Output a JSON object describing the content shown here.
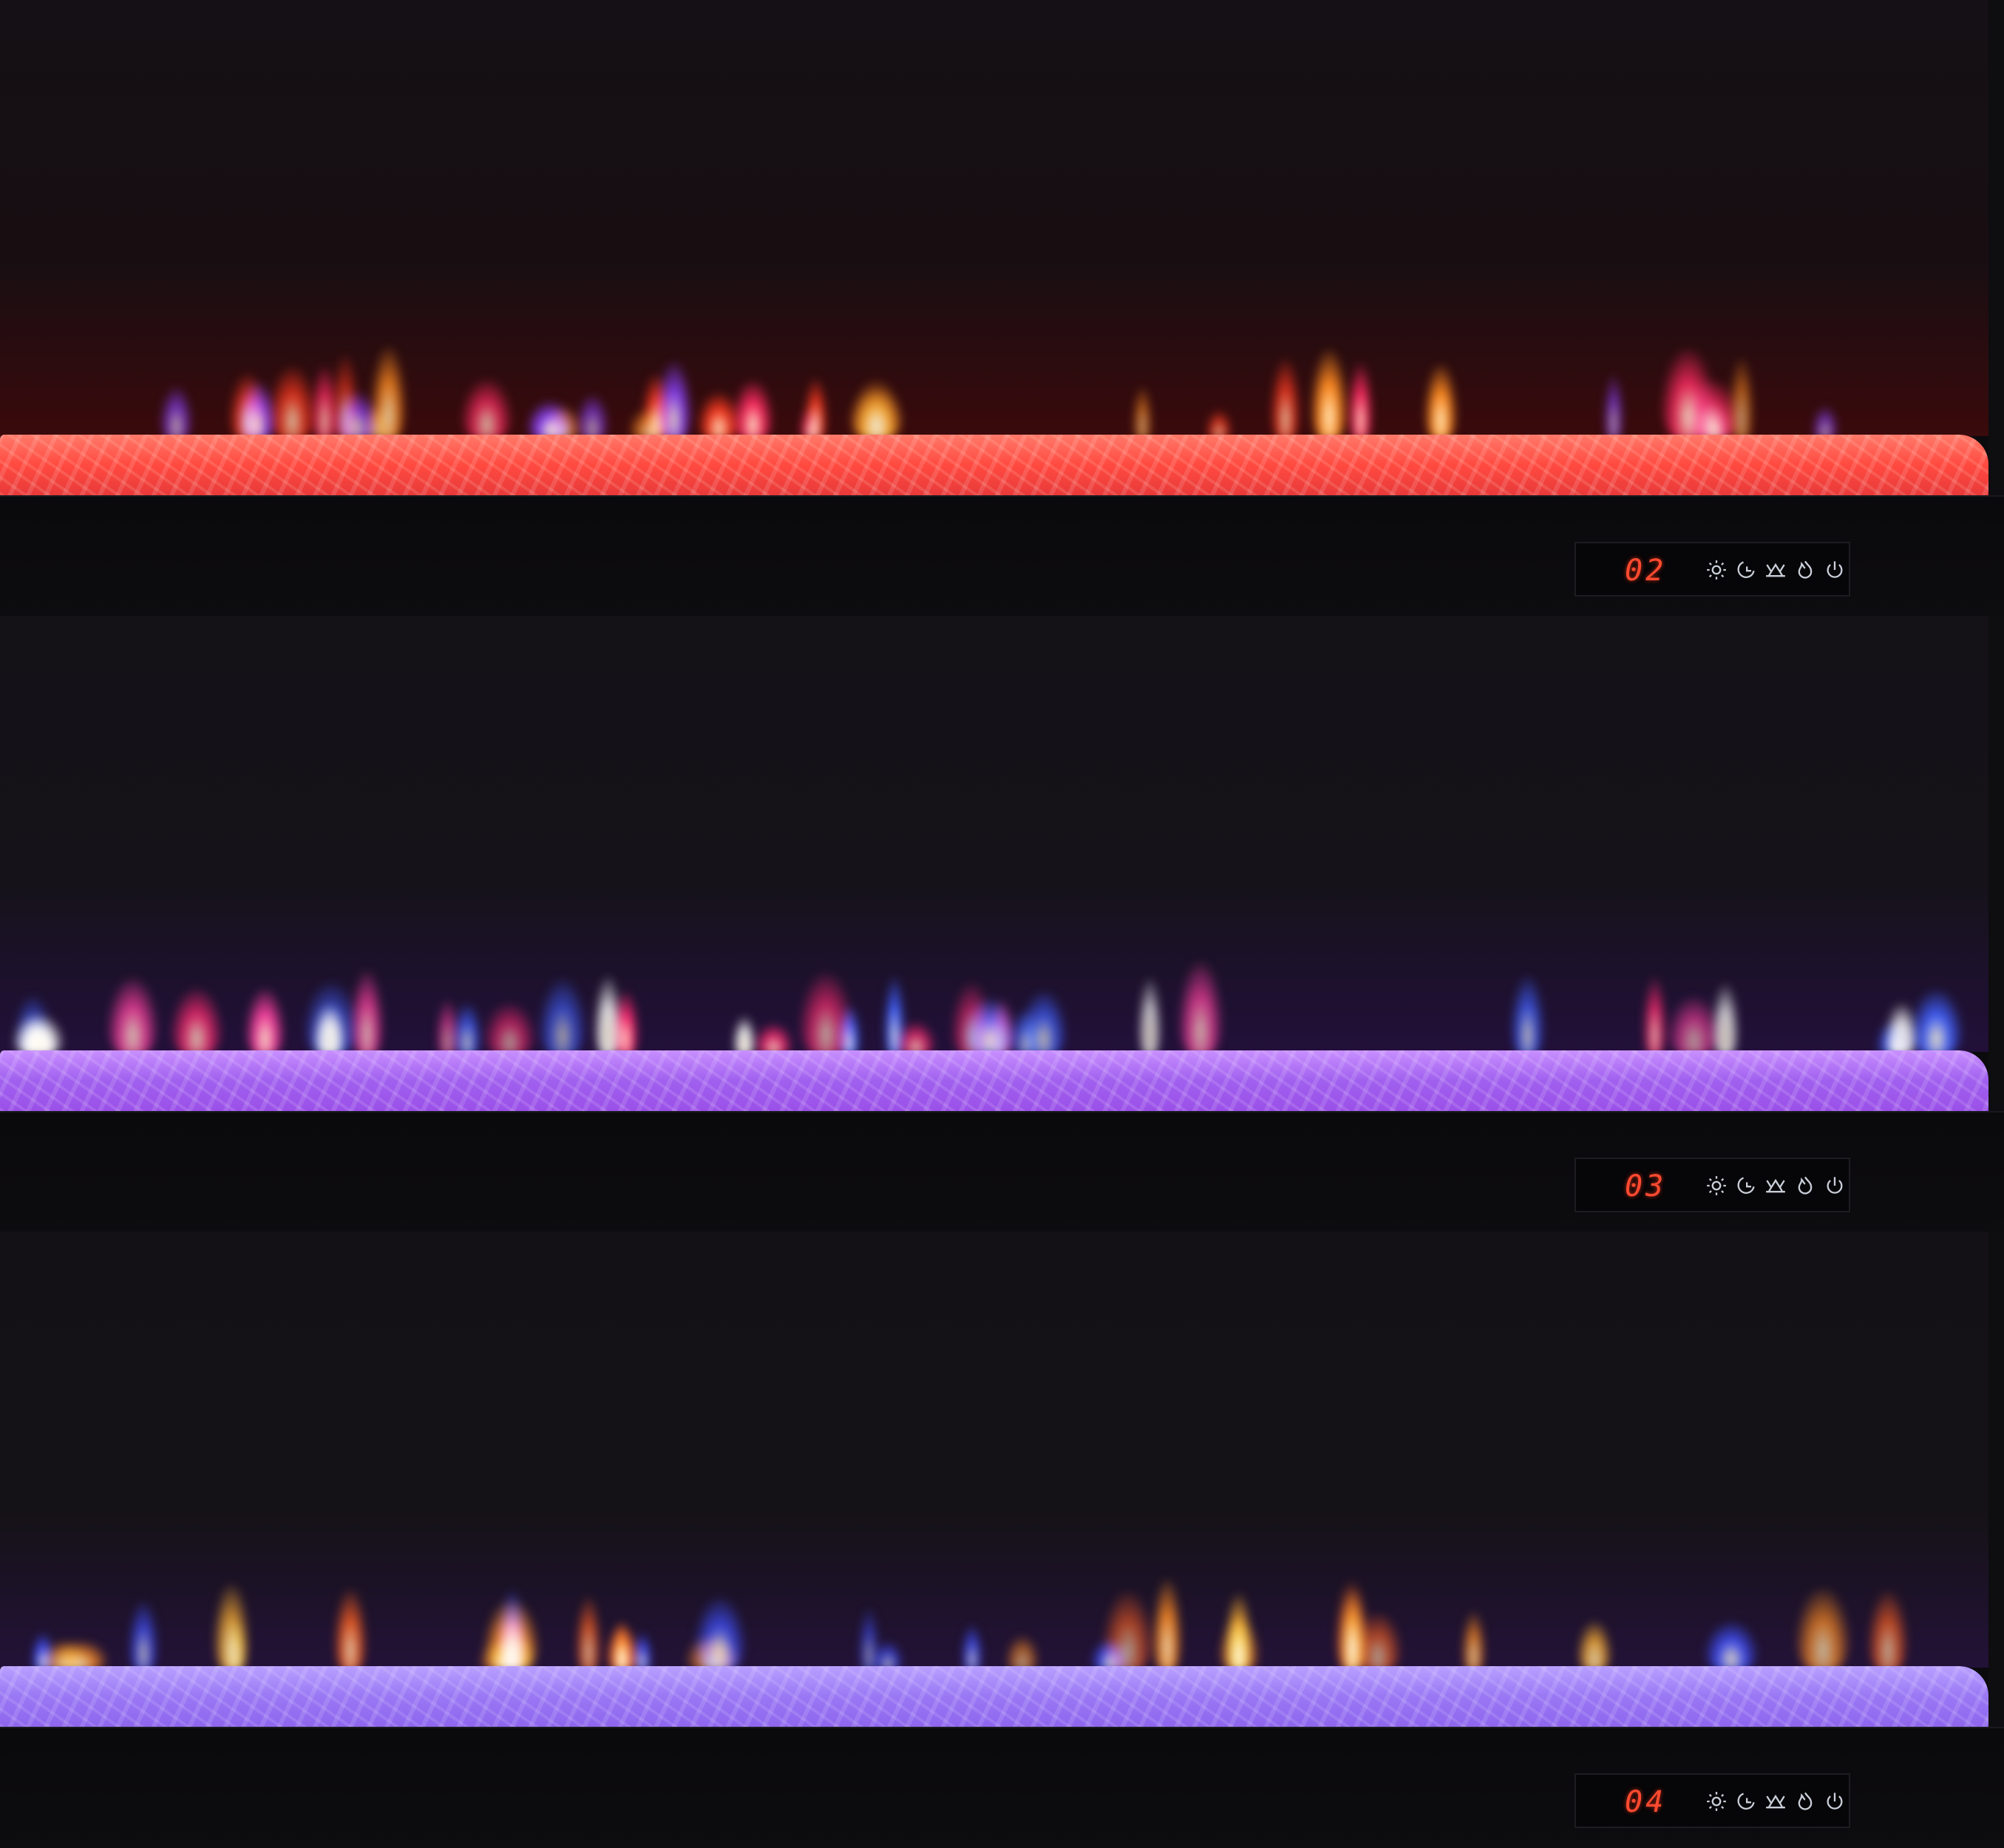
{
  "panels": [
    {
      "display": "02",
      "flame_colors": [
        "#ff3a20",
        "#ff8a20",
        "#ff2a60",
        "#8a40ff"
      ],
      "ember_color": "#ff5a4a"
    },
    {
      "display": "03",
      "flame_colors": [
        "#ff2a70",
        "#ff40a0",
        "#4060ff",
        "#ffffff"
      ],
      "ember_color": "#b070f0"
    },
    {
      "display": "04",
      "flame_colors": [
        "#ff8a20",
        "#ffb030",
        "#4050ff",
        "#ff6020"
      ],
      "ember_color": "#a080ff"
    }
  ],
  "control_icons": [
    "brightness-icon",
    "timer-icon",
    "ember-bed-icon",
    "flame-icon",
    "power-icon"
  ],
  "display_color": "#ff4a30"
}
